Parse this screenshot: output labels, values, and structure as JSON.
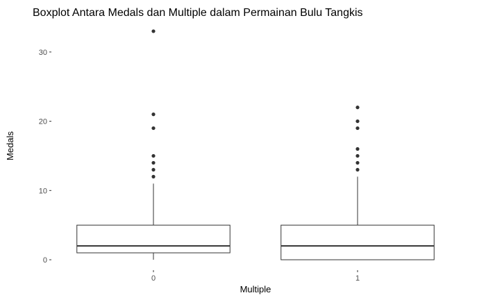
{
  "chart_data": {
    "type": "boxplot",
    "title": "Boxplot Antara Medals dan Multiple dalam Permainan Bulu Tangkis",
    "xlabel": "Multiple",
    "ylabel": "Medals",
    "categories": [
      "0",
      "1"
    ],
    "ylim": [
      -1.5,
      34.5
    ],
    "yticks": [
      0,
      10,
      20,
      30
    ],
    "grid": false,
    "legend": "none",
    "boxes": [
      {
        "category": "0",
        "min": 0,
        "q1": 1,
        "median": 2,
        "q3": 5,
        "max": 11,
        "outliers": [
          12,
          13,
          14,
          15,
          19,
          21,
          33
        ]
      },
      {
        "category": "1",
        "min": 0,
        "q1": 0,
        "median": 2,
        "q3": 5,
        "max": 12,
        "outliers": [
          13,
          14,
          15,
          16,
          19,
          20,
          22
        ]
      }
    ],
    "colors": {
      "box_fill": "#ffffff",
      "stroke": "#333333",
      "outlier": "#333333"
    }
  }
}
